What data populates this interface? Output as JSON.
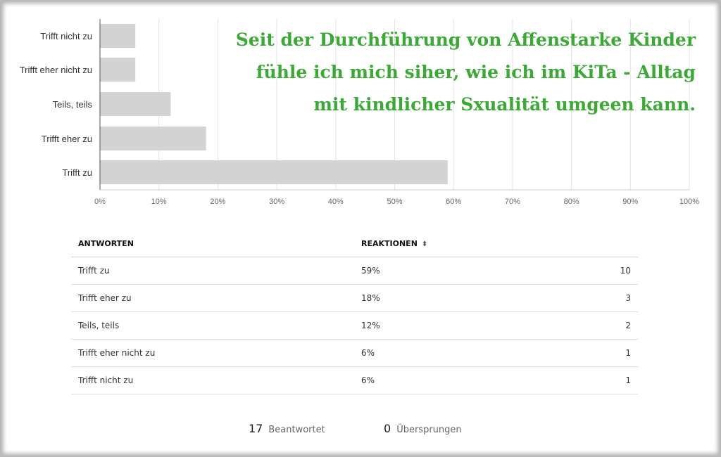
{
  "headline": [
    "Seit der Durchführung von Affenstarke Kinder",
    "fühle ich mich siher, wie ich im KiTa - Alltag",
    "mit kindlicher Sxualität umgeen kann."
  ],
  "chart_data": {
    "type": "bar",
    "orientation": "horizontal",
    "categories": [
      "Trifft nicht zu",
      "Trifft eher nicht zu",
      "Teils, teils",
      "Trifft eher zu",
      "Trifft zu"
    ],
    "values": [
      6,
      6,
      12,
      18,
      59
    ],
    "x_ticks": [
      "0%",
      "10%",
      "20%",
      "30%",
      "40%",
      "50%",
      "60%",
      "70%",
      "80%",
      "90%",
      "100%"
    ],
    "xlim": [
      0,
      100
    ],
    "grid": true,
    "bar_color": "#d3d3d3",
    "title": "",
    "xlabel": "",
    "ylabel": ""
  },
  "table": {
    "headers": {
      "answers": "ANTWORTEN",
      "reactions": "REAKTIONEN",
      "sort_icon": "⬍"
    },
    "rows": [
      {
        "answer": "Trifft zu",
        "percent": "59%",
        "count": "10"
      },
      {
        "answer": "Trifft eher zu",
        "percent": "18%",
        "count": "3"
      },
      {
        "answer": "Teils, teils",
        "percent": "12%",
        "count": "2"
      },
      {
        "answer": "Trifft eher nicht zu",
        "percent": "6%",
        "count": "1"
      },
      {
        "answer": "Trifft nicht zu",
        "percent": "6%",
        "count": "1"
      }
    ]
  },
  "summary": {
    "answered_count": "17",
    "answered_label": "Beantwortet",
    "skipped_count": "0",
    "skipped_label": "Übersprungen"
  },
  "colors": {
    "accent_green": "#3aaa35",
    "bar": "#d3d3d3",
    "grid": "#e3e3e3"
  }
}
